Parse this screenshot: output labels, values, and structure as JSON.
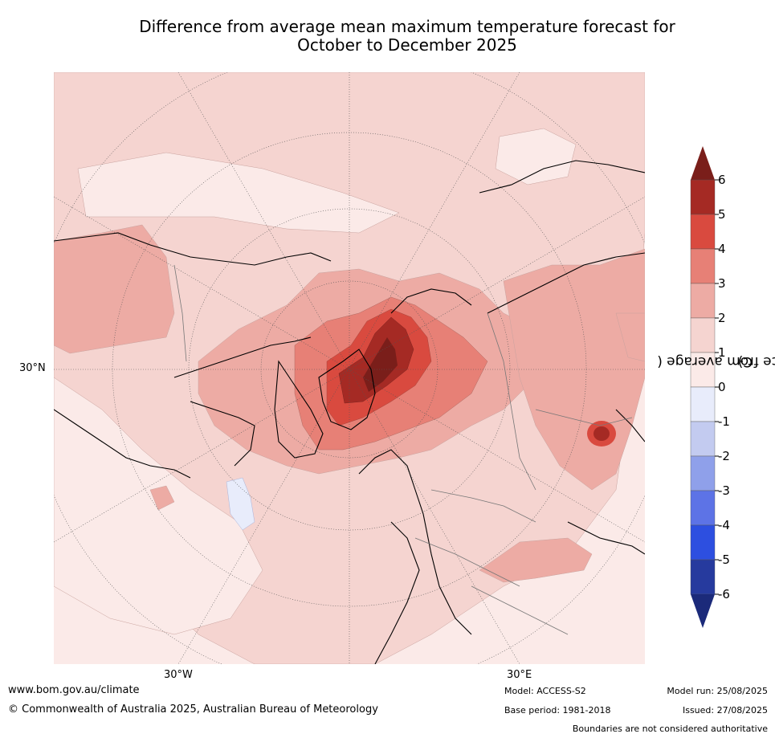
{
  "title": {
    "line1": "Difference from average mean maximum temperature forecast for",
    "line2": "October to December 2025"
  },
  "map": {
    "projection": "north polar stereographic",
    "lon_labels": [
      "30°W",
      "30°E"
    ],
    "lat_labels": [
      "30°N"
    ]
  },
  "colorbar": {
    "label": "Difference from average (°C)",
    "label_parts": [
      "Difference from average (",
      "∘",
      "C)"
    ],
    "ticks": [
      "6",
      "5",
      "4",
      "3",
      "2",
      "1",
      "0",
      "-1",
      "-2",
      "-3",
      "-4",
      "-5",
      "-6"
    ],
    "colors_top_to_bottom": [
      "#7a1e1a",
      "#a52a24",
      "#d94a3f",
      "#e78076",
      "#edaba4",
      "#f5d4d0",
      "#fbeae8",
      "#e8ecfb",
      "#c3cbf0",
      "#8fa0ea",
      "#5d73e6",
      "#2d4fe0",
      "#263a9e",
      "#1b2a7a"
    ]
  },
  "footer": {
    "website": "www.bom.gov.au/climate",
    "copyright": "© Commonwealth of Australia 2025, Australian Bureau of Meteorology",
    "model": "Model: ACCESS-S2",
    "base_period": "Base period: 1981-2018",
    "model_run": "Model run: 25/08/2025",
    "issued": "Issued: 27/08/2025",
    "disclaimer": "Boundaries are not considered authoritative"
  }
}
